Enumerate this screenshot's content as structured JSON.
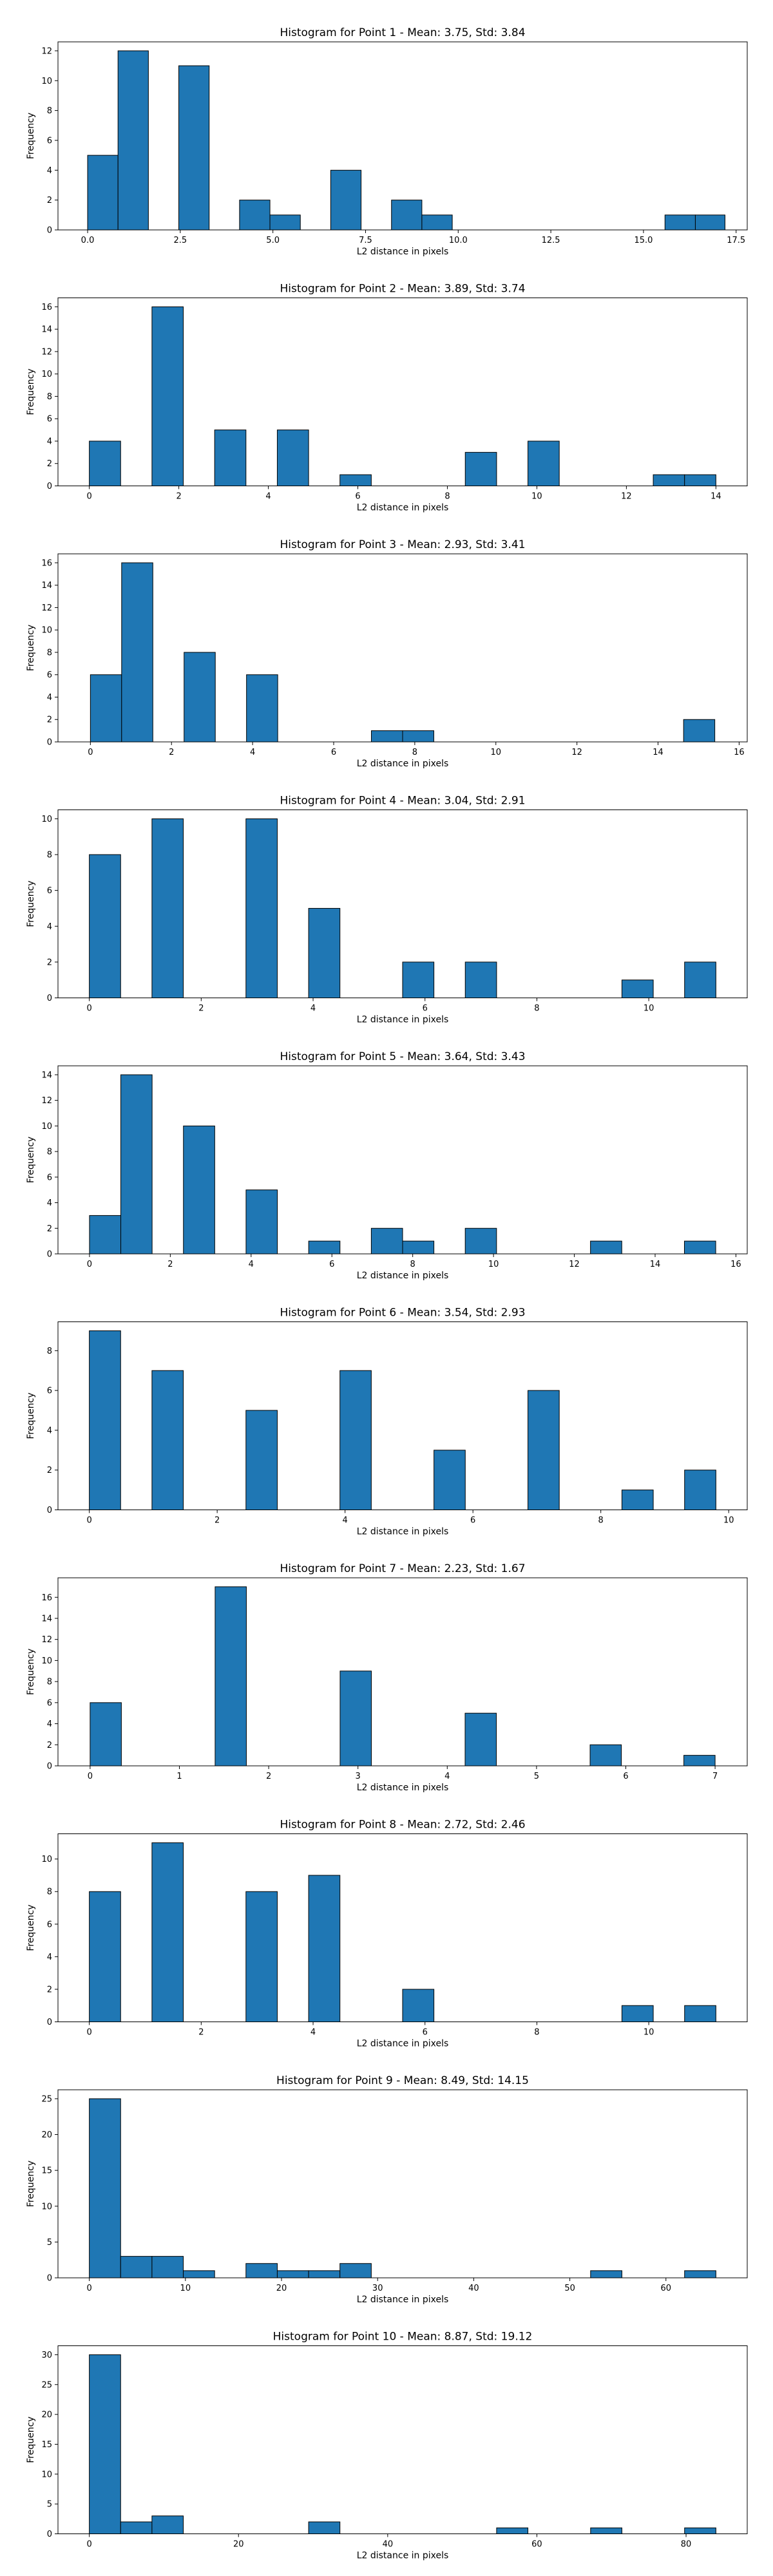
{
  "chart_data": [
    {
      "type": "bar",
      "title": "Histogram for Point 1 - Mean: 3.75, Std: 3.84",
      "xlabel": "L2 distance in pixels",
      "ylabel": "Frequency",
      "xlim": [
        -0.8,
        17.8
      ],
      "ylim": [
        0,
        12.6
      ],
      "xticks": [
        0.0,
        2.5,
        5.0,
        7.5,
        10.0,
        12.5,
        15.0,
        17.5
      ],
      "xtick_labels": [
        "0.0",
        "2.5",
        "5.0",
        "7.5",
        "10.0",
        "12.5",
        "15.0",
        "17.5"
      ],
      "yticks": [
        0,
        2,
        4,
        6,
        8,
        10,
        12
      ],
      "bin_edges": [
        0,
        0.82,
        1.64,
        2.46,
        3.28,
        4.1,
        4.92,
        5.74,
        6.56,
        7.38,
        8.2,
        9.02,
        9.84,
        10.66,
        11.48,
        12.3,
        13.12,
        13.94,
        14.76,
        15.58,
        16.4,
        17.2
      ],
      "values": [
        5,
        12,
        0,
        11,
        0,
        2,
        1,
        0,
        4,
        0,
        2,
        1,
        0,
        0,
        0,
        0,
        0,
        0,
        0,
        1,
        1
      ],
      "grid": false
    },
    {
      "type": "bar",
      "title": "Histogram for Point 2 - Mean: 3.89, Std: 3.74",
      "xlabel": "L2 distance in pixels",
      "ylabel": "Frequency",
      "xlim": [
        -0.7,
        14.7
      ],
      "ylim": [
        0,
        16.8
      ],
      "xticks": [
        0,
        2,
        4,
        6,
        8,
        10,
        12,
        14
      ],
      "xtick_labels": [
        "0",
        "2",
        "4",
        "6",
        "8",
        "10",
        "12",
        "14"
      ],
      "yticks": [
        0,
        2,
        4,
        6,
        8,
        10,
        12,
        14,
        16
      ],
      "bin_edges": [
        0,
        0.7,
        1.4,
        2.1,
        2.8,
        3.5,
        4.2,
        4.9,
        5.6,
        6.3,
        7.0,
        7.7,
        8.4,
        9.1,
        9.8,
        10.5,
        11.2,
        11.9,
        12.6,
        13.3,
        14.0
      ],
      "values": [
        4,
        0,
        16,
        0,
        5,
        0,
        5,
        0,
        1,
        0,
        0,
        0,
        3,
        0,
        4,
        0,
        0,
        0,
        1,
        1
      ],
      "grid": false
    },
    {
      "type": "bar",
      "title": "Histogram for Point 3 - Mean: 2.93, Std: 3.41",
      "xlabel": "L2 distance in pixels",
      "ylabel": "Frequency",
      "xlim": [
        -0.8,
        16.2
      ],
      "ylim": [
        0,
        16.8
      ],
      "xticks": [
        0,
        2,
        4,
        6,
        8,
        10,
        12,
        14,
        16
      ],
      "xtick_labels": [
        "0",
        "2",
        "4",
        "6",
        "8",
        "10",
        "12",
        "14",
        "16"
      ],
      "yticks": [
        0,
        2,
        4,
        6,
        8,
        10,
        12,
        14,
        16
      ],
      "bin_edges": [
        0,
        0.77,
        1.54,
        2.31,
        3.08,
        3.85,
        4.62,
        5.39,
        6.16,
        6.93,
        7.7,
        8.47,
        9.24,
        10.01,
        10.78,
        11.55,
        12.32,
        13.09,
        13.86,
        14.63,
        15.4
      ],
      "values": [
        6,
        16,
        0,
        8,
        0,
        6,
        0,
        0,
        0,
        1,
        1,
        0,
        0,
        0,
        0,
        0,
        0,
        0,
        0,
        2
      ],
      "grid": false
    },
    {
      "type": "bar",
      "title": "Histogram for Point 4 - Mean: 3.04, Std: 2.91",
      "xlabel": "L2 distance in pixels",
      "ylabel": "Frequency",
      "xlim": [
        -0.56,
        11.76
      ],
      "ylim": [
        0,
        10.5
      ],
      "xticks": [
        0,
        2,
        4,
        6,
        8,
        10
      ],
      "xtick_labels": [
        "0",
        "2",
        "4",
        "6",
        "8",
        "10"
      ],
      "yticks": [
        0,
        2,
        4,
        6,
        8,
        10
      ],
      "bin_edges": [
        0,
        0.56,
        1.12,
        1.68,
        2.24,
        2.8,
        3.36,
        3.92,
        4.48,
        5.04,
        5.6,
        6.16,
        6.72,
        7.28,
        7.84,
        8.4,
        8.96,
        9.52,
        10.08,
        10.64,
        11.2
      ],
      "values": [
        8,
        0,
        10,
        0,
        0,
        10,
        0,
        5,
        0,
        0,
        2,
        0,
        2,
        0,
        0,
        0,
        0,
        1,
        0,
        2
      ],
      "grid": false
    },
    {
      "type": "bar",
      "title": "Histogram for Point 5 - Mean: 3.64, Std: 3.43",
      "xlabel": "L2 distance in pixels",
      "ylabel": "Frequency",
      "xlim": [
        -0.78,
        16.28
      ],
      "ylim": [
        0,
        14.7
      ],
      "xticks": [
        0,
        2,
        4,
        6,
        8,
        10,
        12,
        14,
        16
      ],
      "xtick_labels": [
        "0",
        "2",
        "4",
        "6",
        "8",
        "10",
        "12",
        "14",
        "16"
      ],
      "yticks": [
        0,
        2,
        4,
        6,
        8,
        10,
        12,
        14
      ],
      "bin_edges": [
        0,
        0.775,
        1.55,
        2.325,
        3.1,
        3.875,
        4.65,
        5.425,
        6.2,
        6.975,
        7.75,
        8.525,
        9.3,
        10.075,
        10.85,
        11.625,
        12.4,
        13.175,
        13.95,
        14.725,
        15.5
      ],
      "values": [
        3,
        14,
        0,
        10,
        0,
        5,
        0,
        1,
        0,
        2,
        1,
        0,
        2,
        0,
        0,
        0,
        1,
        0,
        0,
        1
      ],
      "grid": false
    },
    {
      "type": "bar",
      "title": "Histogram for Point 6 - Mean: 3.54, Std: 2.93",
      "xlabel": "L2 distance in pixels",
      "ylabel": "Frequency",
      "xlim": [
        -0.49,
        10.29
      ],
      "ylim": [
        0,
        9.45
      ],
      "xticks": [
        0,
        2,
        4,
        6,
        8,
        10
      ],
      "xtick_labels": [
        "0",
        "2",
        "4",
        "6",
        "8",
        "10"
      ],
      "yticks": [
        0,
        2,
        4,
        6,
        8
      ],
      "bin_edges": [
        0,
        0.49,
        0.98,
        1.47,
        1.96,
        2.45,
        2.94,
        3.43,
        3.92,
        4.41,
        4.9,
        5.39,
        5.88,
        6.37,
        6.86,
        7.35,
        7.84,
        8.33,
        8.82,
        9.31,
        9.8
      ],
      "values": [
        9,
        0,
        7,
        0,
        0,
        5,
        0,
        0,
        7,
        0,
        0,
        3,
        0,
        0,
        6,
        0,
        0,
        1,
        0,
        2
      ],
      "grid": false
    },
    {
      "type": "bar",
      "title": "Histogram for Point 7 - Mean: 2.23, Std: 1.67",
      "xlabel": "L2 distance in pixels",
      "ylabel": "Frequency",
      "xlim": [
        -0.36,
        7.36
      ],
      "ylim": [
        0,
        17.85
      ],
      "xticks": [
        0,
        1,
        2,
        3,
        4,
        5,
        6,
        7
      ],
      "xtick_labels": [
        "0",
        "1",
        "2",
        "3",
        "4",
        "5",
        "6",
        "7"
      ],
      "yticks": [
        0,
        2,
        4,
        6,
        8,
        10,
        12,
        14,
        16
      ],
      "bin_edges": [
        0,
        0.35,
        0.7,
        1.05,
        1.4,
        1.75,
        2.1,
        2.45,
        2.8,
        3.15,
        3.5,
        3.85,
        4.2,
        4.55,
        4.9,
        5.25,
        5.6,
        5.95,
        6.3,
        6.65,
        7.0
      ],
      "values": [
        6,
        0,
        0,
        0,
        17,
        0,
        0,
        0,
        9,
        0,
        0,
        0,
        5,
        0,
        0,
        0,
        2,
        0,
        0,
        1
      ],
      "grid": false
    },
    {
      "type": "bar",
      "title": "Histogram for Point 8 - Mean: 2.72, Std: 2.46",
      "xlabel": "L2 distance in pixels",
      "ylabel": "Frequency",
      "xlim": [
        -0.56,
        11.76
      ],
      "ylim": [
        0,
        11.55
      ],
      "xticks": [
        0,
        2,
        4,
        6,
        8,
        10
      ],
      "xtick_labels": [
        "0",
        "2",
        "4",
        "6",
        "8",
        "10"
      ],
      "yticks": [
        0,
        2,
        4,
        6,
        8,
        10
      ],
      "bin_edges": [
        0,
        0.56,
        1.12,
        1.68,
        2.24,
        2.8,
        3.36,
        3.92,
        4.48,
        5.04,
        5.6,
        6.16,
        6.72,
        7.28,
        7.84,
        8.4,
        8.96,
        9.52,
        10.08,
        10.64,
        11.2
      ],
      "values": [
        8,
        0,
        11,
        0,
        0,
        8,
        0,
        9,
        0,
        0,
        2,
        0,
        0,
        0,
        0,
        0,
        0,
        1,
        0,
        1
      ],
      "grid": false
    },
    {
      "type": "bar",
      "title": "Histogram for Point 9 - Mean: 8.49, Std: 14.15",
      "xlabel": "L2 distance in pixels",
      "ylabel": "Frequency",
      "xlim": [
        -3.26,
        68.46
      ],
      "ylim": [
        0,
        26.25
      ],
      "xticks": [
        0,
        10,
        20,
        30,
        40,
        50,
        60
      ],
      "xtick_labels": [
        "0",
        "10",
        "20",
        "30",
        "40",
        "50",
        "60"
      ],
      "yticks": [
        0,
        5,
        10,
        15,
        20,
        25
      ],
      "bin_edges": [
        0,
        3.26,
        6.52,
        9.78,
        13.04,
        16.3,
        19.56,
        22.82,
        26.08,
        29.34,
        32.6,
        35.86,
        39.12,
        42.38,
        45.64,
        48.9,
        52.16,
        55.42,
        58.68,
        61.94,
        65.2
      ],
      "values": [
        25,
        3,
        3,
        1,
        0,
        2,
        1,
        1,
        2,
        0,
        0,
        0,
        0,
        0,
        0,
        0,
        1,
        0,
        0,
        1
      ],
      "grid": false
    },
    {
      "type": "bar",
      "title": "Histogram for Point 10 - Mean: 8.87, Std: 19.12",
      "xlabel": "L2 distance in pixels",
      "ylabel": "Frequency",
      "xlim": [
        -4.2,
        88.2
      ],
      "ylim": [
        0,
        31.5
      ],
      "xticks": [
        0,
        20,
        40,
        60,
        80
      ],
      "xtick_labels": [
        "0",
        "20",
        "40",
        "60",
        "80"
      ],
      "yticks": [
        0,
        5,
        10,
        15,
        20,
        25,
        30
      ],
      "bin_edges": [
        0,
        4.2,
        8.4,
        12.6,
        16.8,
        21.0,
        25.2,
        29.4,
        33.6,
        37.8,
        42.0,
        46.2,
        50.4,
        54.6,
        58.8,
        63.0,
        67.2,
        71.4,
        75.6,
        79.8,
        84.0
      ],
      "values": [
        30,
        2,
        3,
        0,
        0,
        0,
        0,
        2,
        0,
        0,
        0,
        0,
        0,
        1,
        0,
        0,
        1,
        0,
        0,
        1
      ],
      "grid": false
    }
  ]
}
